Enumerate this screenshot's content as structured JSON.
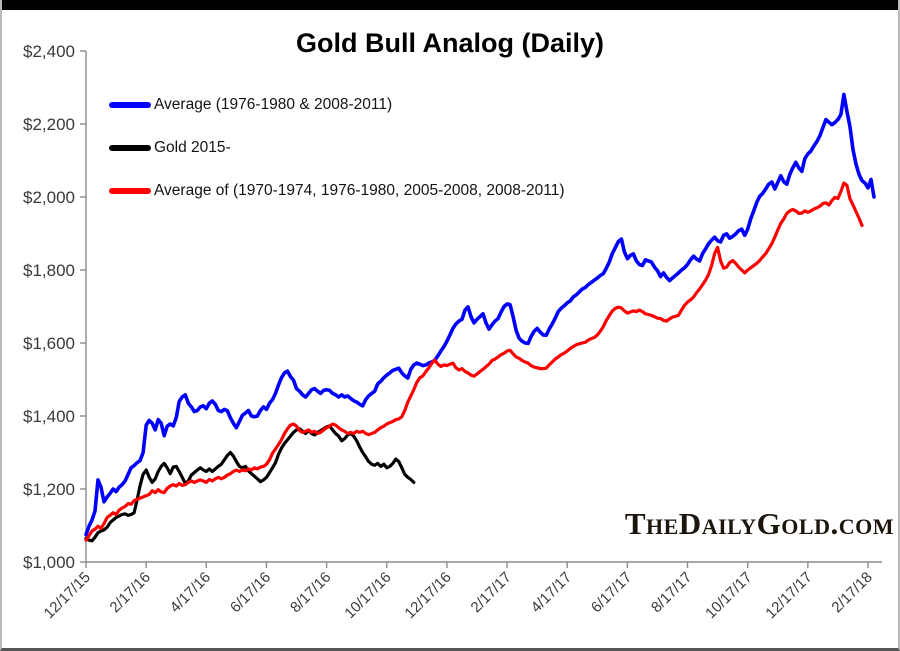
{
  "page": {
    "top_bar_color": "#000000",
    "background": "#ffffff"
  },
  "chart": {
    "title": "Gold Bull Analog (Daily)",
    "watermark": "TheDailyGold.com",
    "legend": [
      {
        "label": "Average (1976-1980 & 2008-2011)",
        "color": "#0000ff"
      },
      {
        "label": "Gold 2015-",
        "color": "#000000"
      },
      {
        "label": "Average of (1970-1974, 1976-1980, 2005-2008, 2008-2011)",
        "color": "#ff0000"
      }
    ]
  },
  "chart_data": {
    "type": "line",
    "title": "Gold Bull Analog (Daily)",
    "xlabel": "",
    "ylabel": "",
    "grid": false,
    "legend_position": "inside-top-left",
    "y_min": 1000,
    "y_max": 2400,
    "y_tick_values": [
      1000,
      1200,
      1400,
      1600,
      1800,
      2000,
      2200,
      2400
    ],
    "y_tick_labels": [
      "$1,000",
      "$1,200",
      "$1,400",
      "$1,600",
      "$1,800",
      "$2,000",
      "$2,200",
      "$2,400"
    ],
    "x_unit": "months since first date",
    "x_max_months": 26.4,
    "x_tick_values": [
      0,
      2,
      4,
      6,
      8,
      10,
      12,
      14,
      16,
      18,
      20,
      22,
      24,
      26
    ],
    "x_tick_labels": [
      "12/17/15",
      "2/17/16",
      "4/17/16",
      "6/17/16",
      "8/17/16",
      "10/17/16",
      "12/17/16",
      "2/17/17",
      "4/17/17",
      "6/17/17",
      "8/17/17",
      "10/17/17",
      "12/17/17",
      "2/17/18"
    ],
    "series": [
      {
        "name": "Average (1976-1980 & 2008-2011)",
        "color": "#0000ff",
        "line_width": 3.6,
        "start_month": 0,
        "step_months": 0.1,
        "values": [
          1075,
          1098,
          1115,
          1140,
          1225,
          1205,
          1165,
          1178,
          1188,
          1200,
          1193,
          1205,
          1212,
          1222,
          1240,
          1258,
          1264,
          1272,
          1278,
          1300,
          1375,
          1388,
          1380,
          1362,
          1390,
          1380,
          1346,
          1372,
          1378,
          1373,
          1395,
          1440,
          1452,
          1458,
          1435,
          1425,
          1412,
          1415,
          1425,
          1428,
          1420,
          1435,
          1441,
          1432,
          1415,
          1412,
          1418,
          1414,
          1395,
          1380,
          1368,
          1385,
          1402,
          1408,
          1415,
          1400,
          1398,
          1400,
          1415,
          1425,
          1418,
          1435,
          1445,
          1462,
          1485,
          1505,
          1518,
          1523,
          1508,
          1498,
          1475,
          1468,
          1458,
          1452,
          1462,
          1472,
          1475,
          1468,
          1462,
          1470,
          1472,
          1470,
          1462,
          1458,
          1452,
          1458,
          1452,
          1455,
          1448,
          1442,
          1438,
          1432,
          1428,
          1445,
          1455,
          1462,
          1468,
          1488,
          1495,
          1505,
          1512,
          1518,
          1525,
          1528,
          1531,
          1518,
          1510,
          1504,
          1528,
          1540,
          1545,
          1542,
          1538,
          1540,
          1545,
          1548,
          1553,
          1565,
          1578,
          1590,
          1605,
          1622,
          1640,
          1652,
          1660,
          1665,
          1690,
          1699,
          1672,
          1655,
          1665,
          1672,
          1680,
          1655,
          1638,
          1650,
          1660,
          1667,
          1685,
          1700,
          1707,
          1705,
          1672,
          1635,
          1613,
          1605,
          1600,
          1599,
          1618,
          1632,
          1640,
          1630,
          1622,
          1621,
          1638,
          1652,
          1668,
          1686,
          1695,
          1702,
          1710,
          1715,
          1726,
          1732,
          1740,
          1748,
          1752,
          1760,
          1766,
          1772,
          1778,
          1785,
          1790,
          1805,
          1822,
          1845,
          1862,
          1878,
          1885,
          1850,
          1831,
          1840,
          1844,
          1825,
          1815,
          1812,
          1828,
          1825,
          1822,
          1808,
          1798,
          1782,
          1792,
          1780,
          1771,
          1778,
          1785,
          1792,
          1800,
          1806,
          1815,
          1828,
          1838,
          1830,
          1825,
          1845,
          1858,
          1872,
          1882,
          1890,
          1880,
          1877,
          1895,
          1899,
          1887,
          1892,
          1899,
          1908,
          1912,
          1895,
          1912,
          1940,
          1962,
          1985,
          2002,
          2010,
          2022,
          2035,
          2041,
          2022,
          2040,
          2058,
          2042,
          2035,
          2062,
          2080,
          2095,
          2080,
          2070,
          2105,
          2118,
          2126,
          2140,
          2152,
          2168,
          2190,
          2212,
          2205,
          2198,
          2204,
          2212,
          2226,
          2281,
          2235,
          2192,
          2130,
          2090,
          2062,
          2045,
          2038,
          2025,
          2048,
          2000
        ]
      },
      {
        "name": "Gold 2015-",
        "color": "#000000",
        "line_width": 3.2,
        "start_month": 0,
        "step_months": 0.1,
        "values": [
          1065,
          1060,
          1058,
          1068,
          1080,
          1085,
          1088,
          1095,
          1108,
          1115,
          1122,
          1126,
          1130,
          1132,
          1128,
          1130,
          1135,
          1170,
          1210,
          1240,
          1252,
          1232,
          1218,
          1228,
          1248,
          1262,
          1270,
          1258,
          1242,
          1260,
          1262,
          1248,
          1232,
          1215,
          1222,
          1238,
          1245,
          1252,
          1258,
          1252,
          1248,
          1255,
          1248,
          1255,
          1262,
          1268,
          1280,
          1292,
          1300,
          1290,
          1275,
          1262,
          1258,
          1262,
          1250,
          1242,
          1235,
          1228,
          1220,
          1225,
          1232,
          1245,
          1258,
          1272,
          1295,
          1312,
          1325,
          1335,
          1345,
          1355,
          1362,
          1365,
          1358,
          1352,
          1360,
          1352,
          1348,
          1355,
          1360,
          1365,
          1370,
          1373,
          1362,
          1352,
          1345,
          1332,
          1338,
          1348,
          1352,
          1345,
          1332,
          1315,
          1300,
          1288,
          1275,
          1268,
          1265,
          1270,
          1262,
          1268,
          1258,
          1262,
          1270,
          1282,
          1275,
          1258,
          1240,
          1232,
          1226,
          1218
        ]
      },
      {
        "name": "Average of (1970-1974, 1976-1980, 2005-2008, 2008-2011)",
        "color": "#ff0000",
        "line_width": 3.2,
        "start_month": 0,
        "step_months": 0.1,
        "values": [
          1060,
          1072,
          1085,
          1090,
          1098,
          1092,
          1105,
          1122,
          1128,
          1135,
          1130,
          1142,
          1148,
          1152,
          1160,
          1158,
          1168,
          1172,
          1175,
          1178,
          1182,
          1185,
          1195,
          1190,
          1198,
          1192,
          1190,
          1202,
          1208,
          1212,
          1208,
          1215,
          1210,
          1212,
          1218,
          1222,
          1218,
          1222,
          1225,
          1222,
          1218,
          1226,
          1222,
          1228,
          1232,
          1228,
          1232,
          1238,
          1242,
          1248,
          1252,
          1248,
          1252,
          1250,
          1255,
          1252,
          1258,
          1255,
          1260,
          1262,
          1268,
          1280,
          1298,
          1310,
          1322,
          1335,
          1352,
          1365,
          1375,
          1378,
          1372,
          1360,
          1355,
          1358,
          1362,
          1355,
          1358,
          1352,
          1355,
          1362,
          1368,
          1372,
          1378,
          1375,
          1368,
          1362,
          1358,
          1352,
          1355,
          1352,
          1358,
          1355,
          1358,
          1352,
          1349,
          1352,
          1355,
          1362,
          1368,
          1372,
          1378,
          1382,
          1385,
          1390,
          1392,
          1398,
          1415,
          1438,
          1455,
          1472,
          1492,
          1505,
          1510,
          1522,
          1532,
          1545,
          1553,
          1542,
          1536,
          1540,
          1538,
          1542,
          1545,
          1532,
          1526,
          1530,
          1522,
          1518,
          1512,
          1509,
          1515,
          1522,
          1528,
          1535,
          1542,
          1552,
          1556,
          1562,
          1568,
          1572,
          1578,
          1580,
          1570,
          1562,
          1558,
          1552,
          1548,
          1545,
          1538,
          1534,
          1532,
          1530,
          1530,
          1531,
          1540,
          1548,
          1556,
          1562,
          1568,
          1572,
          1578,
          1585,
          1590,
          1595,
          1598,
          1600,
          1602,
          1608,
          1612,
          1615,
          1622,
          1632,
          1645,
          1662,
          1675,
          1688,
          1695,
          1698,
          1696,
          1688,
          1682,
          1685,
          1688,
          1686,
          1690,
          1686,
          1680,
          1678,
          1676,
          1672,
          1668,
          1667,
          1662,
          1660,
          1666,
          1671,
          1673,
          1676,
          1690,
          1703,
          1712,
          1718,
          1726,
          1738,
          1748,
          1760,
          1772,
          1788,
          1812,
          1845,
          1862,
          1825,
          1805,
          1808,
          1820,
          1826,
          1818,
          1808,
          1800,
          1792,
          1800,
          1806,
          1812,
          1818,
          1826,
          1836,
          1845,
          1858,
          1872,
          1890,
          1910,
          1928,
          1940,
          1955,
          1962,
          1966,
          1962,
          1955,
          1956,
          1962,
          1958,
          1962,
          1967,
          1970,
          1975,
          1982,
          1984,
          1978,
          1990,
          1999,
          1996,
          2015,
          2038,
          2032,
          1995,
          1978,
          1960,
          1942,
          1922
        ]
      }
    ]
  }
}
